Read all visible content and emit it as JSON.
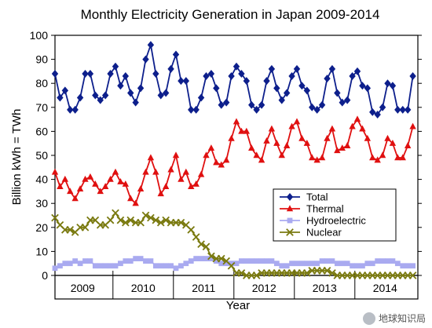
{
  "chart_data": {
    "type": "line",
    "title": "Monthly Electricity Generation in Japan 2009-2014",
    "xlabel": "Year",
    "ylabel": "Billion kWh = TWh",
    "ylim": [
      0,
      100
    ],
    "yticks": [
      0,
      10,
      20,
      30,
      40,
      50,
      60,
      70,
      80,
      90,
      100
    ],
    "x_start": "2009-01",
    "xlim_months": [
      1,
      73
    ],
    "year_labels": [
      "2009",
      "2010",
      "2011",
      "2012",
      "2013",
      "2014"
    ],
    "legend": "center-right",
    "grid": false,
    "series": [
      {
        "name": "Total",
        "color": "#0d1f8c",
        "marker": "diamond",
        "values": [
          84,
          74,
          77,
          69,
          69,
          74,
          84,
          84,
          75,
          73,
          75,
          84,
          87,
          79,
          83,
          76,
          72,
          78,
          90,
          96,
          84,
          75,
          76,
          86,
          92,
          81,
          81,
          69,
          69,
          74,
          83,
          84,
          78,
          71,
          72,
          83,
          87,
          84,
          81,
          71,
          69,
          71,
          81,
          86,
          78,
          73,
          76,
          83,
          86,
          79,
          77,
          70,
          69,
          71,
          82,
          86,
          76,
          72,
          73,
          83,
          85,
          79,
          78,
          68,
          67,
          70,
          80,
          79,
          69,
          69,
          69,
          83
        ]
      },
      {
        "name": "Thermal",
        "color": "#e01010",
        "marker": "triangle",
        "values": [
          43,
          37,
          40,
          35,
          32,
          36,
          40,
          41,
          38,
          35,
          37,
          40,
          43,
          39,
          38,
          32,
          30,
          36,
          43,
          49,
          43,
          34,
          37,
          44,
          50,
          40,
          43,
          37,
          38,
          42,
          50,
          53,
          47,
          46,
          48,
          57,
          64,
          60,
          60,
          53,
          50,
          48,
          56,
          61,
          55,
          50,
          54,
          62,
          64,
          57,
          55,
          49,
          48,
          49,
          57,
          61,
          52,
          53,
          54,
          62,
          65,
          61,
          57,
          49,
          48,
          50,
          57,
          55,
          49,
          49,
          54,
          62
        ]
      },
      {
        "name": "Hydroelectric",
        "color": "#a9aaf0",
        "marker": "square",
        "values": [
          3,
          4,
          5,
          5,
          6,
          5,
          6,
          6,
          4,
          4,
          4,
          4,
          4,
          5,
          6,
          6,
          7,
          7,
          6,
          6,
          4,
          4,
          4,
          4,
          3,
          4,
          5,
          6,
          7,
          7,
          7,
          7,
          6,
          5,
          5,
          5,
          5,
          6,
          6,
          6,
          6,
          6,
          6,
          6,
          5,
          4,
          4,
          5,
          5,
          5,
          5,
          5,
          5,
          6,
          6,
          6,
          5,
          5,
          5,
          4,
          4,
          4,
          5,
          5,
          6,
          6,
          6,
          6,
          5,
          4,
          4,
          4
        ]
      },
      {
        "name": "Nuclear",
        "color": "#7a7a10",
        "marker": "x",
        "values": [
          24,
          21,
          19,
          19,
          18,
          20,
          20,
          23,
          23,
          21,
          21,
          23,
          26,
          23,
          22,
          23,
          22,
          22,
          25,
          24,
          23,
          22,
          23,
          22,
          22,
          22,
          21,
          19,
          16,
          13,
          12,
          8,
          7,
          7,
          6,
          4,
          1,
          1,
          0,
          0,
          0,
          1,
          1,
          1,
          1,
          1,
          1,
          1,
          1,
          1,
          1,
          2,
          2,
          2,
          2,
          1,
          0,
          0,
          0,
          0,
          0,
          0,
          0,
          0,
          0,
          0,
          0,
          0,
          0,
          0,
          0,
          0
        ]
      }
    ]
  },
  "watermark": {
    "text": "地球知识局",
    "icon": "wechat-icon"
  }
}
